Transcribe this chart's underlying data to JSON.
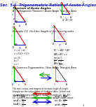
{
  "title": "Sec. 5.1  Trigonometric Ratios of Acute Angles",
  "background": "#ffffff",
  "red": "#dd0000",
  "green": "#00aa00",
  "blue": "#0000cc",
  "pink": "#ff69b4",
  "orange": "#ff8c00",
  "teal": "#008080",
  "purple": "#800080",
  "title_color": "#2222cc",
  "page_num": "1"
}
